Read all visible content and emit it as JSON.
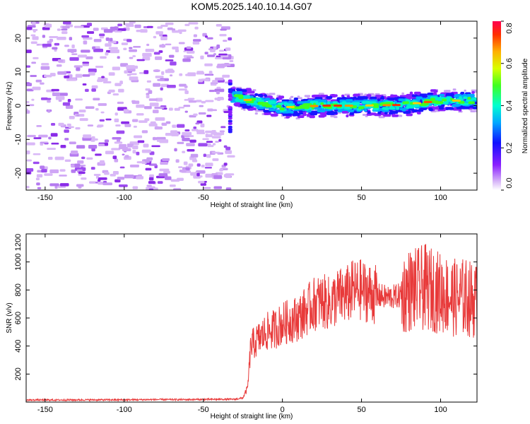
{
  "title": "KOM5.2025.140.10.14.G07",
  "chart_data": [
    {
      "type": "heatmap",
      "xlabel": "Height of straight line (km)",
      "ylabel": "Frequency (Hz)",
      "xlim": [
        -162,
        123
      ],
      "ylim": [
        -25,
        25
      ],
      "xticks": [
        -150,
        -100,
        -50,
        0,
        50,
        100
      ],
      "yticks": [
        -20,
        -10,
        0,
        10,
        20
      ],
      "colorbar": {
        "label": "Normalized spectral amplitude",
        "range": [
          0,
          0.8
        ],
        "ticks": [
          "0.0",
          "0.2",
          "0.4",
          "0.6",
          "0.8"
        ]
      },
      "signal_band": {
        "x_start": -32,
        "x_end": 123,
        "frequency_hz": [
          [
            -32,
            3
          ],
          [
            -25,
            2
          ],
          [
            0,
            -0.5
          ],
          [
            25,
            0
          ],
          [
            50,
            0
          ],
          [
            75,
            0.2
          ],
          [
            100,
            1.5
          ],
          [
            123,
            1.5
          ]
        ],
        "noise_region_x": [
          -162,
          -32
        ]
      }
    },
    {
      "type": "line",
      "xlabel": "Height of straight line (km)",
      "ylabel": "SNR (v/v)",
      "xlim": [
        -162,
        123
      ],
      "ylim": [
        0,
        1200
      ],
      "xticks": [
        -150,
        -100,
        -50,
        0,
        50,
        100
      ],
      "yticks": [
        200,
        400,
        600,
        800,
        1000,
        1200
      ],
      "line_color": "#e83a3a",
      "series": [
        {
          "x": [
            -162,
            -140,
            -120,
            -100,
            -80,
            -60,
            -40,
            -30,
            -25,
            -22,
            -20,
            -15,
            -10,
            -5,
            0,
            5,
            10,
            15,
            20,
            25,
            30,
            35,
            40,
            45,
            50,
            55,
            60,
            65,
            70,
            75,
            80,
            85,
            90,
            95,
            100,
            105,
            110,
            115,
            120,
            123
          ],
          "y": [
            15,
            15,
            16,
            16,
            18,
            18,
            20,
            20,
            30,
            100,
            400,
            450,
            500,
            520,
            560,
            580,
            600,
            650,
            700,
            720,
            700,
            750,
            760,
            800,
            800,
            780,
            760,
            750,
            750,
            760,
            800,
            800,
            820,
            800,
            780,
            760,
            740,
            750,
            730,
            720
          ]
        }
      ]
    }
  ]
}
